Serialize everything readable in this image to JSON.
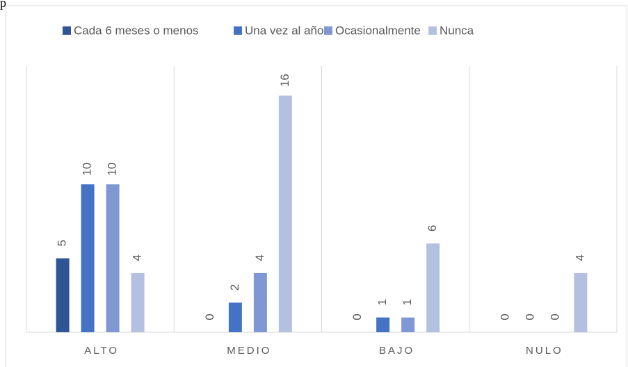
{
  "fragment": "p",
  "chart_data": {
    "type": "bar",
    "categories": [
      "ALTO",
      "MEDIO",
      "BAJO",
      "NULO"
    ],
    "series": [
      {
        "name": "Cada 6 meses o menos",
        "color": "#2f5597",
        "values": [
          5,
          0,
          0,
          0
        ]
      },
      {
        "name": "Una vez al año",
        "color": "#4472c4",
        "values": [
          10,
          2,
          1,
          0
        ]
      },
      {
        "name": "Ocasionalmente",
        "color": "#7f97d2",
        "values": [
          10,
          4,
          1,
          0
        ]
      },
      {
        "name": "Nunca",
        "color": "#b4c0e0",
        "values": [
          4,
          16,
          6,
          4
        ]
      }
    ],
    "ylim": [
      0,
      18
    ],
    "legend": "top"
  }
}
